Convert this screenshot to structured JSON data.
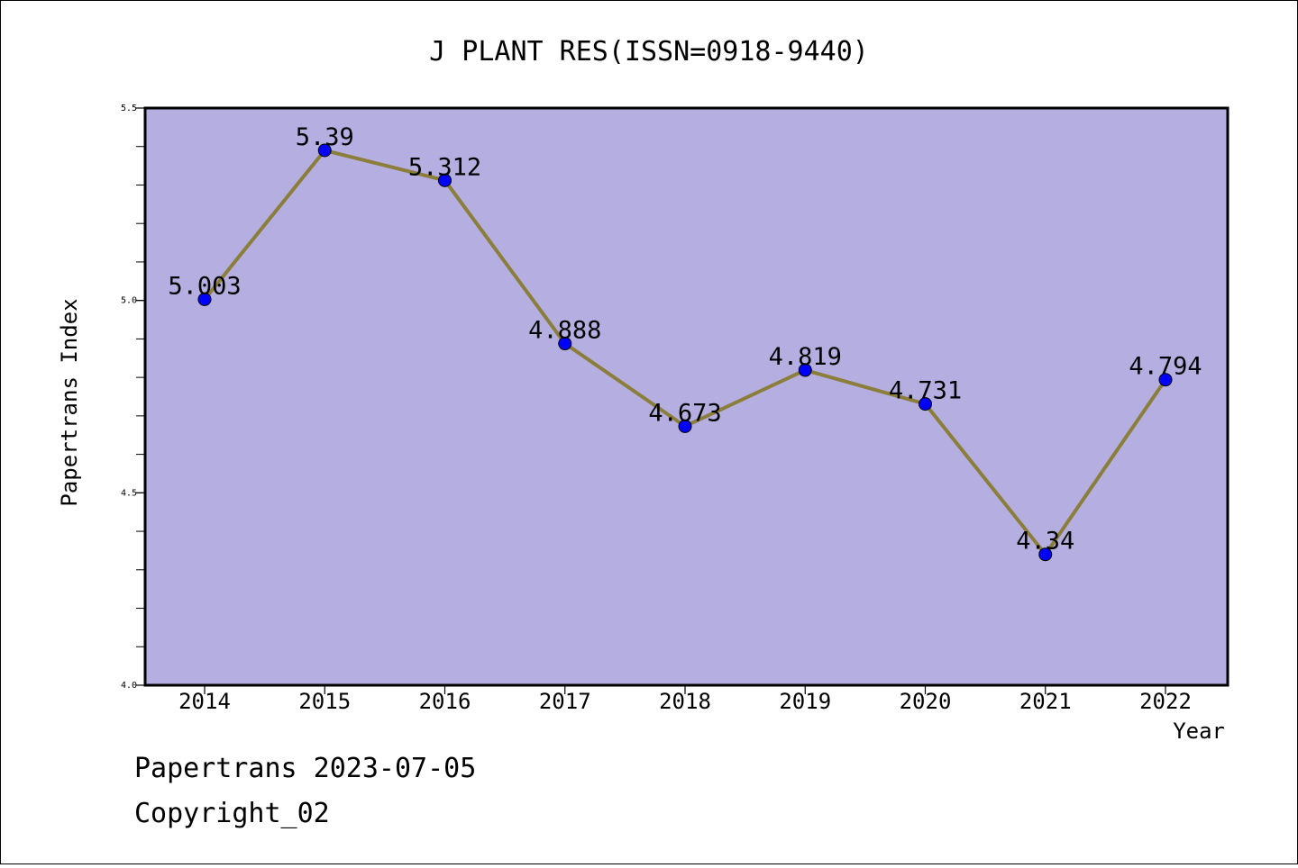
{
  "chart_data": {
    "type": "line",
    "title": "J PLANT RES(ISSN=0918-9440)",
    "xlabel": "Year",
    "ylabel": "Papertrans Index",
    "categories": [
      "2014",
      "2015",
      "2016",
      "2017",
      "2018",
      "2019",
      "2020",
      "2021",
      "2022"
    ],
    "series": [
      {
        "values": [
          5.003,
          5.39,
          5.312,
          4.888,
          4.673,
          4.819,
          4.731,
          4.34,
          4.794
        ],
        "labels": [
          "5.003",
          "5.39",
          "5.312",
          "4.888",
          "4.673",
          "4.819",
          "4.731",
          "4.34",
          "4.794"
        ],
        "line_color": "#8b7d3a",
        "marker_color": "#0000ff"
      }
    ],
    "ylim": [
      4.0,
      5.5
    ],
    "yticks": [
      "4.0",
      "4.5",
      "5.0",
      "5.5"
    ],
    "y_minor_step": 0.1,
    "plot_background": "#b5afe1",
    "grid": false,
    "legend": "none"
  },
  "footer": {
    "line1": "Papertrans 2023-07-05",
    "line2": "Copyright_02"
  }
}
